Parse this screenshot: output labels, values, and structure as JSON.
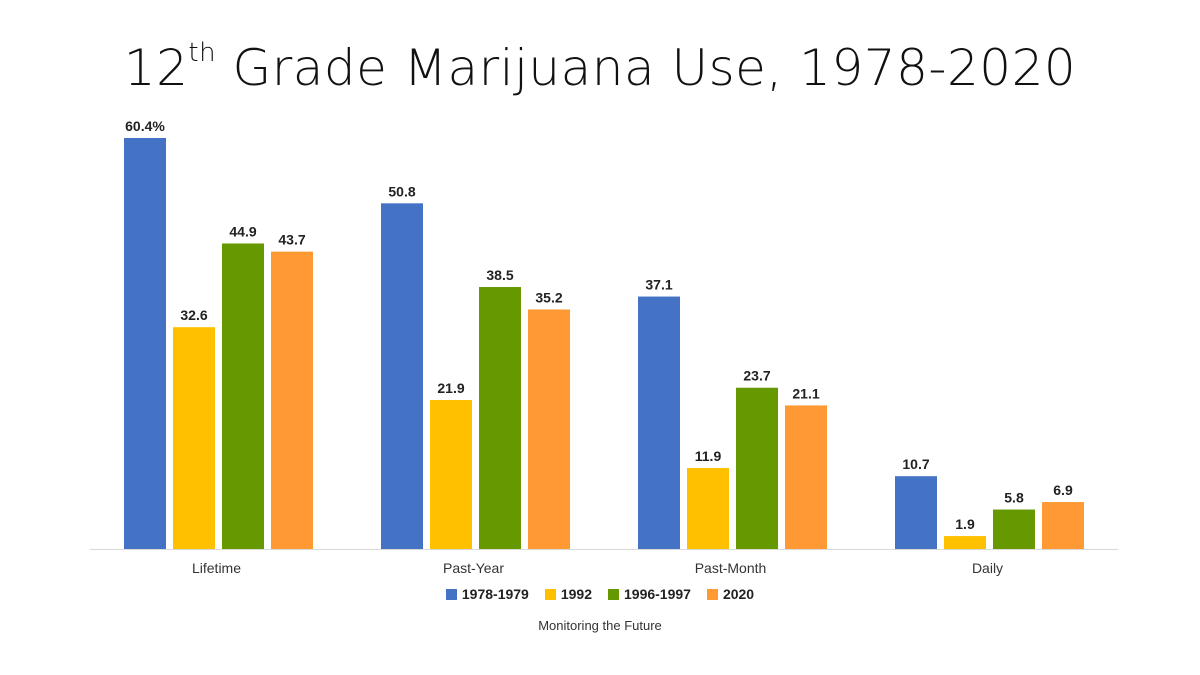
{
  "title": {
    "main": "12",
    "sup": "th",
    "rest": " Grade Marijuana Use, 1978-2020"
  },
  "source": "Monitoring the Future",
  "chart_data": {
    "type": "bar",
    "categories": [
      "Lifetime",
      "Past-Year",
      "Past-Month",
      "Daily"
    ],
    "series": [
      {
        "name": "1978-1979",
        "color": "#4472C4",
        "values": [
          60.4,
          50.8,
          37.1,
          10.7
        ],
        "labels": [
          "60.4%",
          "50.8",
          "37.1",
          "10.7"
        ]
      },
      {
        "name": "1992",
        "color": "#FFC000",
        "values": [
          32.6,
          21.9,
          11.9,
          1.9
        ],
        "labels": [
          "32.6",
          "21.9",
          "11.9",
          "1.9"
        ]
      },
      {
        "name": "1996-1997",
        "color": "#669900",
        "values": [
          44.9,
          38.5,
          23.7,
          5.8
        ],
        "labels": [
          "44.9",
          "38.5",
          "23.7",
          "5.8"
        ]
      },
      {
        "name": "2020",
        "color": "#FF9933",
        "values": [
          43.7,
          35.2,
          21.1,
          6.9
        ],
        "labels": [
          "43.7",
          "35.2",
          "21.1",
          "6.9"
        ]
      }
    ],
    "ylim": [
      0,
      60.4
    ],
    "grid": false,
    "legend_position": "bottom"
  }
}
